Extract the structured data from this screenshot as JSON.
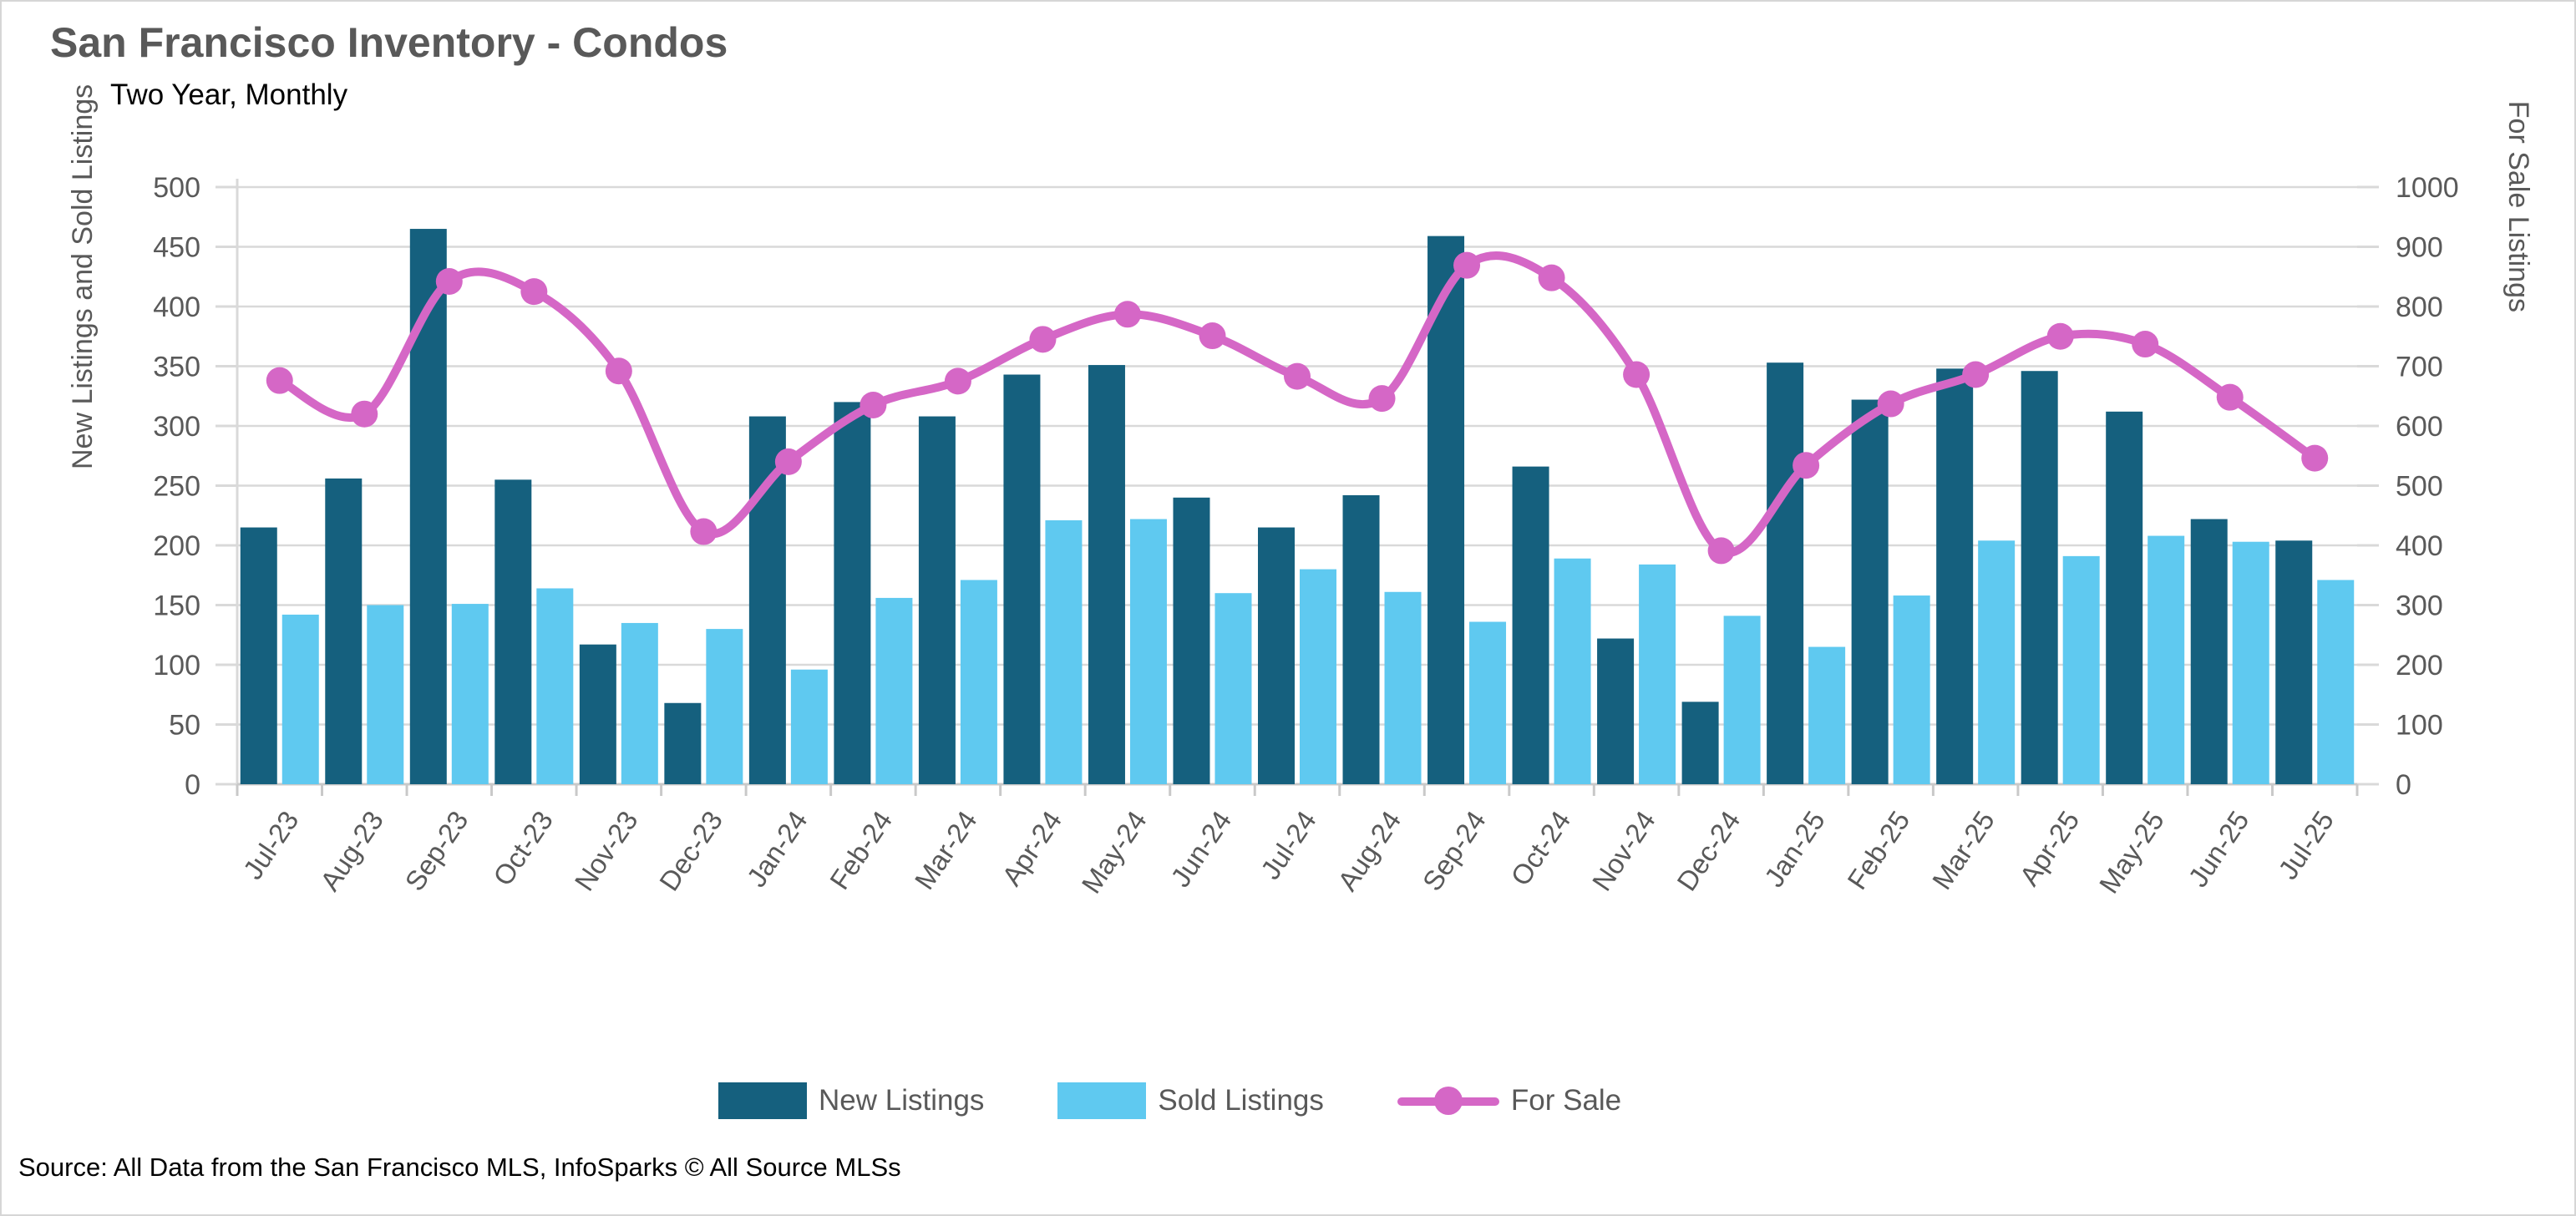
{
  "title": "San Francisco Inventory - Condos",
  "subtitle": "Two Year, Monthly",
  "source": "Source: All Data from the San Francisco MLS, InfoSparks © All Source MLSs",
  "colors": {
    "new_listings": "#15607E",
    "sold_listings": "#5FC9F0",
    "for_sale": "#D567C6",
    "grid": "#D9D9D9",
    "axis_text": "#595959"
  },
  "legend": {
    "items": [
      {
        "label": "New Listings",
        "swatch": "bar-swatch-dark-blue"
      },
      {
        "label": "Sold Listings",
        "swatch": "bar-swatch-light-blue"
      },
      {
        "label": "For Sale",
        "swatch": "line-swatch-pink"
      }
    ]
  },
  "chart_data": {
    "type": "bar",
    "subtype": "grouped-bars-with-line-overlay",
    "title": "San Francisco Inventory - Condos",
    "subtitle": "Two Year, Monthly",
    "categories": [
      "Jul-23",
      "Aug-23",
      "Sep-23",
      "Oct-23",
      "Nov-23",
      "Dec-23",
      "Jan-24",
      "Feb-24",
      "Mar-24",
      "Apr-24",
      "May-24",
      "Jun-24",
      "Jul-24",
      "Aug-24",
      "Sep-24",
      "Oct-24",
      "Nov-24",
      "Dec-24",
      "Jan-25",
      "Feb-25",
      "Mar-25",
      "Apr-25",
      "May-25",
      "Jun-25",
      "Jul-25"
    ],
    "series": [
      {
        "name": "New Listings",
        "type": "bar",
        "axis": "left",
        "color": "#15607E",
        "values": [
          215,
          256,
          465,
          255,
          117,
          68,
          308,
          320,
          308,
          343,
          351,
          240,
          215,
          242,
          459,
          266,
          122,
          69,
          353,
          322,
          348,
          346,
          312,
          222,
          204
        ]
      },
      {
        "name": "Sold Listings",
        "type": "bar",
        "axis": "left",
        "color": "#5FC9F0",
        "values": [
          142,
          150,
          151,
          164,
          135,
          130,
          96,
          156,
          171,
          221,
          222,
          160,
          180,
          161,
          136,
          189,
          184,
          141,
          115,
          158,
          204,
          191,
          208,
          203,
          171
        ]
      },
      {
        "name": "For Sale",
        "type": "line",
        "axis": "right",
        "color": "#D567C6",
        "values": [
          676,
          620,
          842,
          825,
          692,
          423,
          540,
          635,
          675,
          745,
          787,
          751,
          683,
          646,
          869,
          848,
          686,
          391,
          534,
          637,
          686,
          750,
          737,
          648,
          546
        ]
      }
    ],
    "left_axis": {
      "label": "New Listings and Sold Listings",
      "min": 0,
      "max": 500,
      "step": 50
    },
    "right_axis": {
      "label": "For Sale Listings",
      "min": 0,
      "max": 1000,
      "step": 100
    },
    "grid": true,
    "legend_position": "bottom"
  }
}
